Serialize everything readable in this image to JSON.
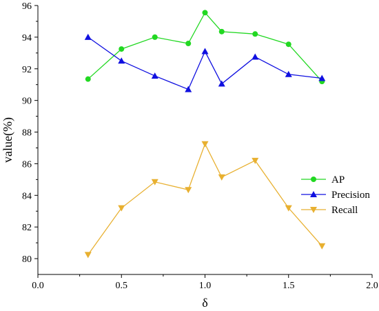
{
  "chart_data": {
    "type": "line",
    "xlabel": "δ",
    "ylabel": "value(%)",
    "xlim": [
      0.0,
      2.0
    ],
    "ylim": [
      79,
      96
    ],
    "xticks": [
      0.0,
      0.5,
      1.0,
      1.5,
      2.0
    ],
    "xtick_labels": [
      "0.0",
      "0.5",
      "1.0",
      "1.5",
      "2.0"
    ],
    "yticks": [
      80,
      82,
      84,
      86,
      88,
      90,
      92,
      94,
      96
    ],
    "ytick_labels": [
      "80",
      "82",
      "84",
      "86",
      "88",
      "90",
      "92",
      "94",
      "96"
    ],
    "grid": false,
    "legend_position": "center-right",
    "x": [
      0.3,
      0.5,
      0.7,
      0.9,
      1.0,
      1.1,
      1.3,
      1.5,
      1.7
    ],
    "series": [
      {
        "name": "AP",
        "color": "#22d822",
        "marker": "circle",
        "values": [
          91.35,
          93.25,
          94.0,
          93.6,
          95.55,
          94.35,
          94.2,
          93.55,
          91.2
        ]
      },
      {
        "name": "Precision",
        "color": "#1010e0",
        "marker": "triangle-up",
        "values": [
          94.0,
          92.5,
          91.55,
          90.7,
          93.1,
          91.05,
          92.75,
          91.65,
          91.4
        ]
      },
      {
        "name": "Recall",
        "color": "#e8b030",
        "marker": "triangle-down",
        "values": [
          80.25,
          83.2,
          84.85,
          84.35,
          87.25,
          85.15,
          86.2,
          83.2,
          80.8
        ]
      }
    ]
  }
}
